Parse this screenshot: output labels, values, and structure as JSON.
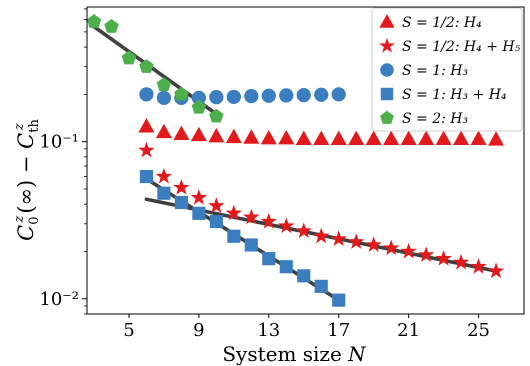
{
  "chart_data": {
    "type": "scatter",
    "xlabel": "System size N",
    "ylabel": "C_0^z(∞) − C_th^z",
    "ylog": true,
    "xlim": [
      2.6,
      27.6
    ],
    "ylim": [
      0.008,
      0.72
    ],
    "xticks": [
      5,
      9,
      13,
      17,
      21,
      25
    ],
    "yticks": [
      {
        "value": 0.01,
        "label": "10⁻²"
      },
      {
        "value": 0.1,
        "label": "10⁻¹"
      }
    ],
    "legend_position": "top-right",
    "series": [
      {
        "name": "S = 1/2: H₄",
        "marker": "triangle",
        "color": "#e31a1c",
        "x": [
          6,
          7,
          8,
          9,
          10,
          11,
          12,
          13,
          14,
          15,
          16,
          17,
          18,
          19,
          20,
          21,
          22,
          23,
          24,
          25,
          26
        ],
        "y": [
          0.125,
          0.115,
          0.112,
          0.11,
          0.108,
          0.107,
          0.106,
          0.105,
          0.105,
          0.104,
          0.104,
          0.104,
          0.104,
          0.104,
          0.104,
          0.104,
          0.104,
          0.104,
          0.104,
          0.104,
          0.103
        ]
      },
      {
        "name": "S = 1/2: H₄ + H₅",
        "marker": "star",
        "color": "#e31a1c",
        "x": [
          6,
          7,
          8,
          9,
          10,
          11,
          12,
          13,
          14,
          15,
          16,
          17,
          18,
          19,
          20,
          21,
          22,
          23,
          24,
          25,
          26
        ],
        "y": [
          0.088,
          0.06,
          0.051,
          0.044,
          0.039,
          0.035,
          0.033,
          0.031,
          0.029,
          0.027,
          0.025,
          0.024,
          0.023,
          0.022,
          0.021,
          0.02,
          0.019,
          0.018,
          0.017,
          0.016,
          0.015
        ]
      },
      {
        "name": "S = 1: H₃",
        "marker": "circle",
        "color": "#3a7ebf",
        "x": [
          6,
          7,
          8,
          9,
          10,
          11,
          12,
          13,
          14,
          15,
          16,
          17
        ],
        "y": [
          0.2,
          0.19,
          0.19,
          0.19,
          0.192,
          0.193,
          0.195,
          0.196,
          0.197,
          0.198,
          0.199,
          0.2
        ]
      },
      {
        "name": "S = 1: H₃ + H₄",
        "marker": "square",
        "color": "#3a7ebf",
        "x": [
          6,
          7,
          8,
          9,
          10,
          11,
          12,
          13,
          14,
          15,
          16,
          17
        ],
        "y": [
          0.06,
          0.047,
          0.041,
          0.035,
          0.031,
          0.025,
          0.022,
          0.018,
          0.016,
          0.014,
          0.012,
          0.0098
        ]
      },
      {
        "name": "S = 2: H₃",
        "marker": "pentagon",
        "color": "#4daf4a",
        "x": [
          3,
          4,
          5,
          6,
          7,
          8,
          9,
          10
        ],
        "y": [
          0.58,
          0.54,
          0.34,
          0.3,
          0.23,
          0.2,
          0.165,
          0.145
        ]
      }
    ],
    "fits": [
      {
        "x": [
          3,
          10
        ],
        "y": [
          0.54,
          0.15
        ]
      },
      {
        "x": [
          6,
          26
        ],
        "y": [
          0.043,
          0.015
        ]
      },
      {
        "x": [
          6,
          17
        ],
        "y": [
          0.058,
          0.0098
        ]
      }
    ]
  }
}
